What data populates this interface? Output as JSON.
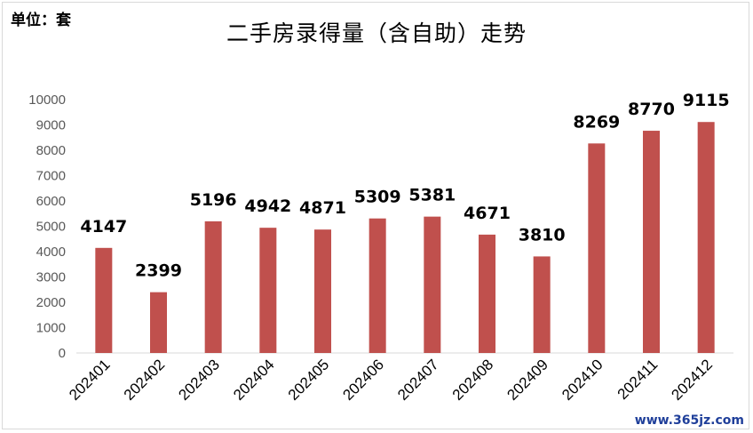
{
  "unit_label": "单位：套",
  "watermark": "www.365jz.com",
  "colors": {
    "bar": "#c0504d",
    "axis": "#d9d9d9"
  },
  "chart_data": {
    "type": "bar",
    "title": "二手房录得量（含自助）走势",
    "xlabel": "",
    "ylabel": "",
    "ylim": [
      0,
      10000
    ],
    "yticks": [
      0,
      1000,
      2000,
      3000,
      4000,
      5000,
      6000,
      7000,
      8000,
      9000,
      10000
    ],
    "grid": false,
    "legend": "none",
    "categories": [
      "202401",
      "202402",
      "202403",
      "202404",
      "202405",
      "202406",
      "202407",
      "202408",
      "202409",
      "202410",
      "202411",
      "202412"
    ],
    "values": [
      4147,
      2399,
      5196,
      4942,
      4871,
      5309,
      5381,
      4671,
      3810,
      8269,
      8770,
      9115
    ]
  }
}
